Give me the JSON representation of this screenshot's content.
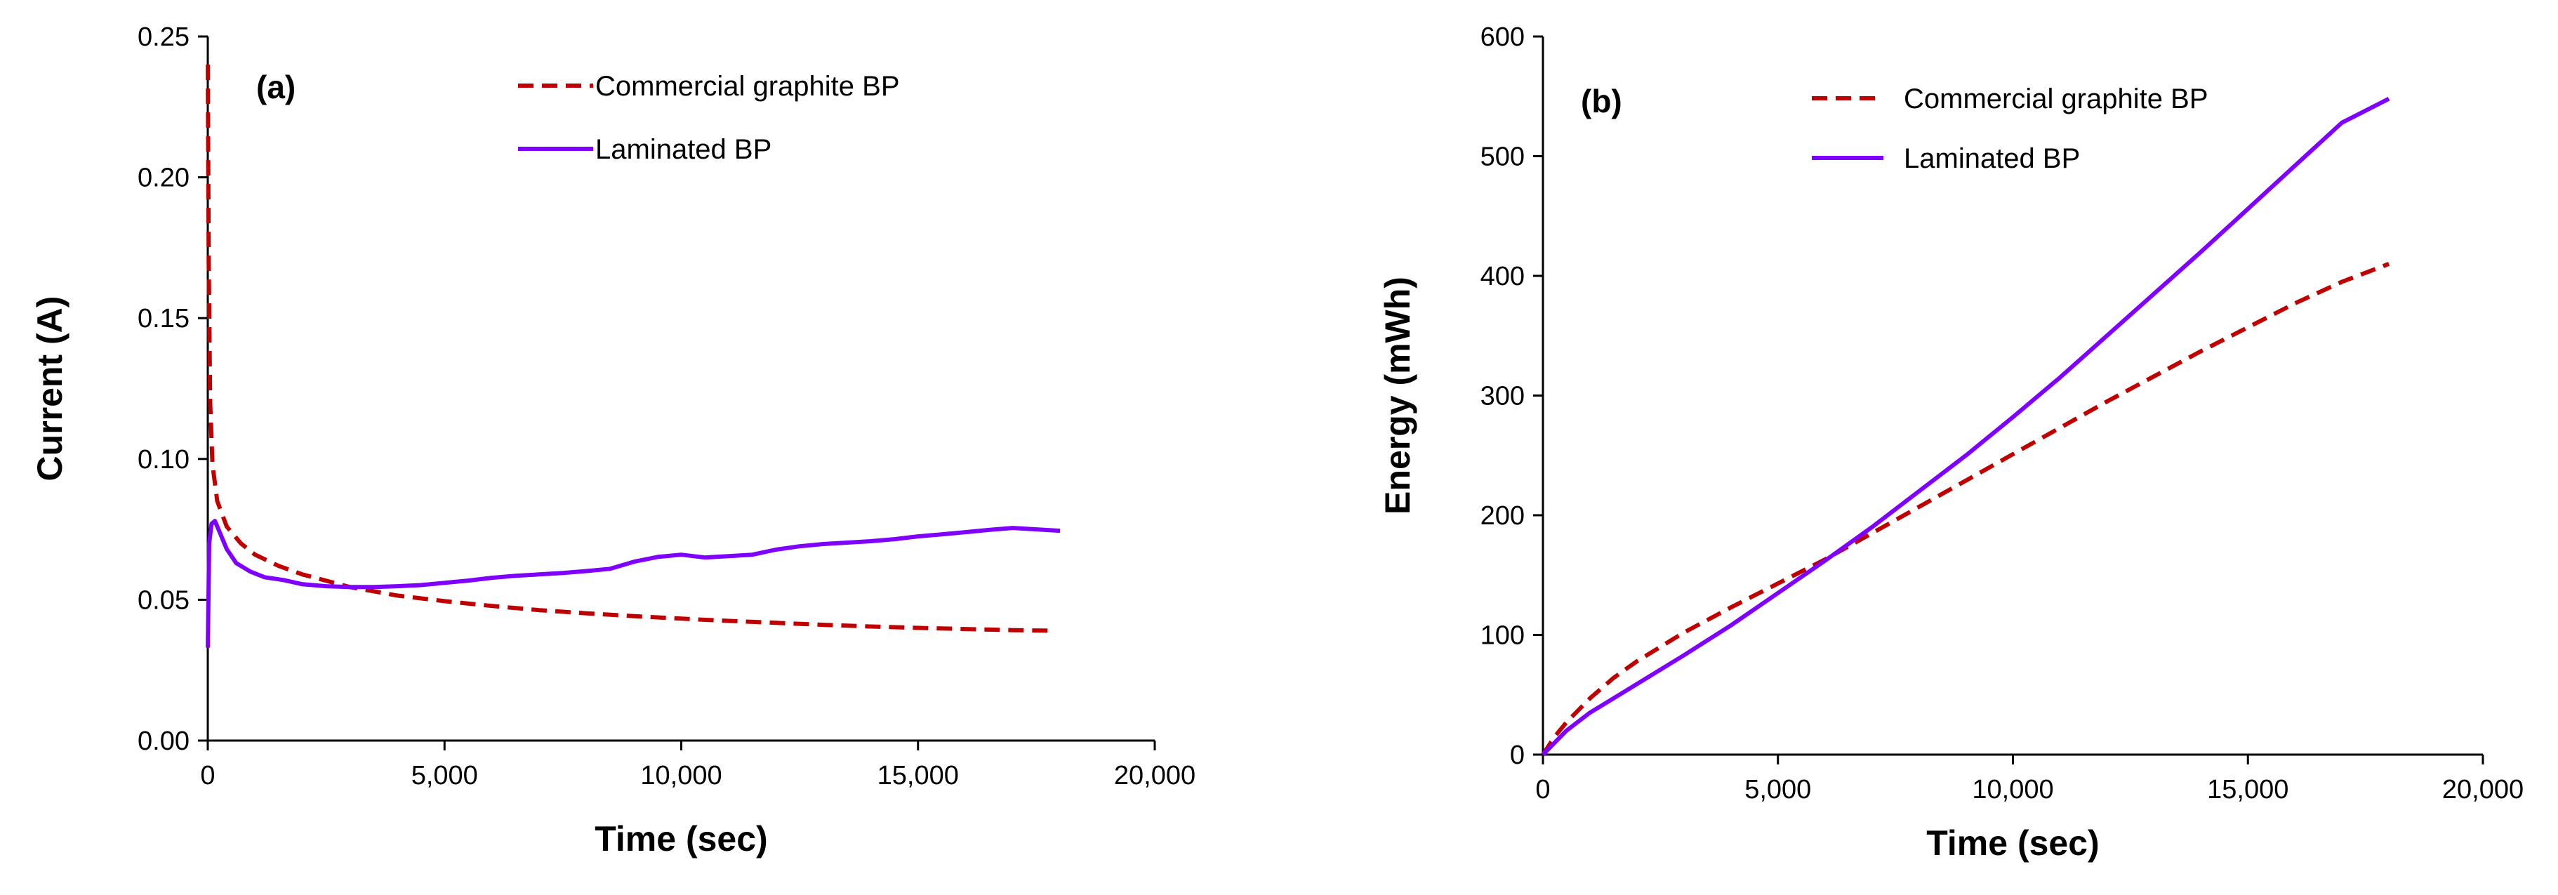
{
  "colors": {
    "graphite": "#C00000",
    "laminated": "#7F00FF",
    "axis": "#000000"
  },
  "chart_data": [
    {
      "type": "line",
      "panel_label": "(a)",
      "xlabel": "Time (sec)",
      "ylabel": "Current  (A)",
      "xlim": [
        0,
        20000
      ],
      "ylim": [
        0,
        0.25
      ],
      "x_ticks": [
        0,
        5000,
        10000,
        15000,
        20000
      ],
      "x_tick_labels": [
        "0",
        "5,000",
        "10,000",
        "15,000",
        "20,000"
      ],
      "y_ticks": [
        0,
        0.05,
        0.1,
        0.15,
        0.2,
        0.25
      ],
      "y_tick_labels": [
        "0.00",
        "0.05",
        "0.10",
        "0.15",
        "0.20",
        "0.25"
      ],
      "legend_position": "top-right",
      "series": [
        {
          "name": "Commercial graphite BP",
          "style": "dashed",
          "color": "#C00000",
          "x": [
            0,
            20,
            50,
            100,
            200,
            400,
            700,
            1000,
            1500,
            2000,
            3000,
            4000,
            5000,
            6000,
            7000,
            8000,
            9000,
            10000,
            11000,
            12000,
            13000,
            14000,
            15000,
            16000,
            17000,
            17900
          ],
          "y": [
            0.24,
            0.17,
            0.12,
            0.098,
            0.085,
            0.076,
            0.07,
            0.066,
            0.062,
            0.059,
            0.0545,
            0.0515,
            0.0495,
            0.0478,
            0.0463,
            0.0452,
            0.0442,
            0.0433,
            0.0425,
            0.0418,
            0.0411,
            0.0405,
            0.04,
            0.0396,
            0.0392,
            0.039
          ]
        },
        {
          "name": "Laminated BP",
          "style": "solid",
          "color": "#7F00FF",
          "x": [
            0,
            30,
            80,
            150,
            250,
            400,
            600,
            900,
            1200,
            1600,
            2000,
            2500,
            3000,
            3500,
            4000,
            4500,
            5000,
            5500,
            6000,
            6500,
            7000,
            7500,
            8000,
            8500,
            8800,
            9000,
            9500,
            10000,
            10500,
            11000,
            11500,
            12000,
            12500,
            13000,
            13500,
            14000,
            14500,
            15000,
            15500,
            16000,
            16500,
            17000,
            17500,
            18000
          ],
          "y": [
            0.033,
            0.07,
            0.077,
            0.078,
            0.074,
            0.068,
            0.063,
            0.06,
            0.058,
            0.057,
            0.0555,
            0.0548,
            0.0545,
            0.0545,
            0.0548,
            0.0552,
            0.056,
            0.0568,
            0.0578,
            0.0585,
            0.059,
            0.0595,
            0.0602,
            0.061,
            0.0625,
            0.0635,
            0.0652,
            0.066,
            0.065,
            0.0655,
            0.066,
            0.0678,
            0.069,
            0.0698,
            0.0703,
            0.0708,
            0.0715,
            0.0725,
            0.0732,
            0.074,
            0.0748,
            0.0755,
            0.075,
            0.0745
          ]
        }
      ]
    },
    {
      "type": "line",
      "panel_label": "(b)",
      "xlabel": "Time (sec)",
      "ylabel": "Energy (mWh)",
      "xlim": [
        0,
        20000
      ],
      "ylim": [
        0,
        600
      ],
      "x_ticks": [
        0,
        5000,
        10000,
        15000,
        20000
      ],
      "x_tick_labels": [
        "0",
        "5,000",
        "10,000",
        "15,000",
        "20,000"
      ],
      "y_ticks": [
        0,
        100,
        200,
        300,
        400,
        500,
        600
      ],
      "y_tick_labels": [
        "0",
        "100",
        "200",
        "300",
        "400",
        "500",
        "600"
      ],
      "legend_position": "top-right",
      "series": [
        {
          "name": "Commercial graphite BP",
          "style": "dashed",
          "color": "#C00000",
          "x": [
            0,
            250,
            500,
            1000,
            1500,
            2000,
            3000,
            4000,
            5000,
            6000,
            7000,
            8000,
            9000,
            10000,
            11000,
            12000,
            13000,
            14000,
            15000,
            16000,
            17000,
            18000
          ],
          "y": [
            0,
            15,
            27,
            47,
            64,
            78,
            102,
            123,
            143,
            163,
            185,
            207,
            229,
            251,
            273,
            295,
            316,
            337,
            357,
            377,
            395,
            410
          ]
        },
        {
          "name": "Laminated BP",
          "style": "solid",
          "color": "#7F00FF",
          "x": [
            0,
            250,
            500,
            1000,
            1500,
            2000,
            3000,
            4000,
            5000,
            6000,
            7000,
            8000,
            9000,
            10000,
            11000,
            12000,
            13000,
            14000,
            15000,
            16000,
            17000,
            18000
          ],
          "y": [
            0,
            10,
            20,
            35,
            47,
            59,
            83,
            108,
            135,
            162,
            190,
            220,
            250,
            282,
            315,
            350,
            385,
            420,
            456,
            492,
            528,
            548
          ]
        }
      ]
    }
  ]
}
